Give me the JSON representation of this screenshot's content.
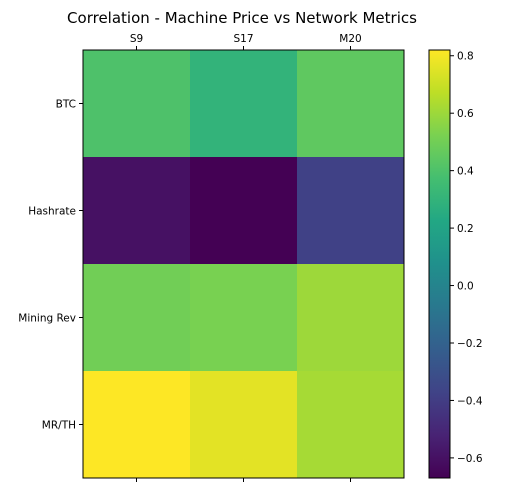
{
  "chart_data": {
    "type": "heatmap",
    "title": "Correlation - Machine Price vs Network Metrics",
    "columns": [
      "S9",
      "S17",
      "M20"
    ],
    "rows": [
      "BTC",
      "Hashrate",
      "Mining Rev",
      "MR/TH"
    ],
    "values": [
      [
        0.4,
        0.3,
        0.45
      ],
      [
        -0.6,
        -0.67,
        -0.38
      ],
      [
        0.5,
        0.52,
        0.6
      ],
      [
        0.82,
        0.76,
        0.62
      ]
    ],
    "colorbar": {
      "vmin": -0.67,
      "vmax": 0.82,
      "ticks": [
        -0.6,
        -0.4,
        -0.2,
        0.0,
        0.2,
        0.4,
        0.6,
        0.8
      ],
      "tick_labels": [
        "−0.6",
        "−0.4",
        "−0.2",
        "0.0",
        "0.2",
        "0.4",
        "0.6",
        "0.8"
      ],
      "colormap": "viridis"
    },
    "x_ticks_position": "top"
  }
}
